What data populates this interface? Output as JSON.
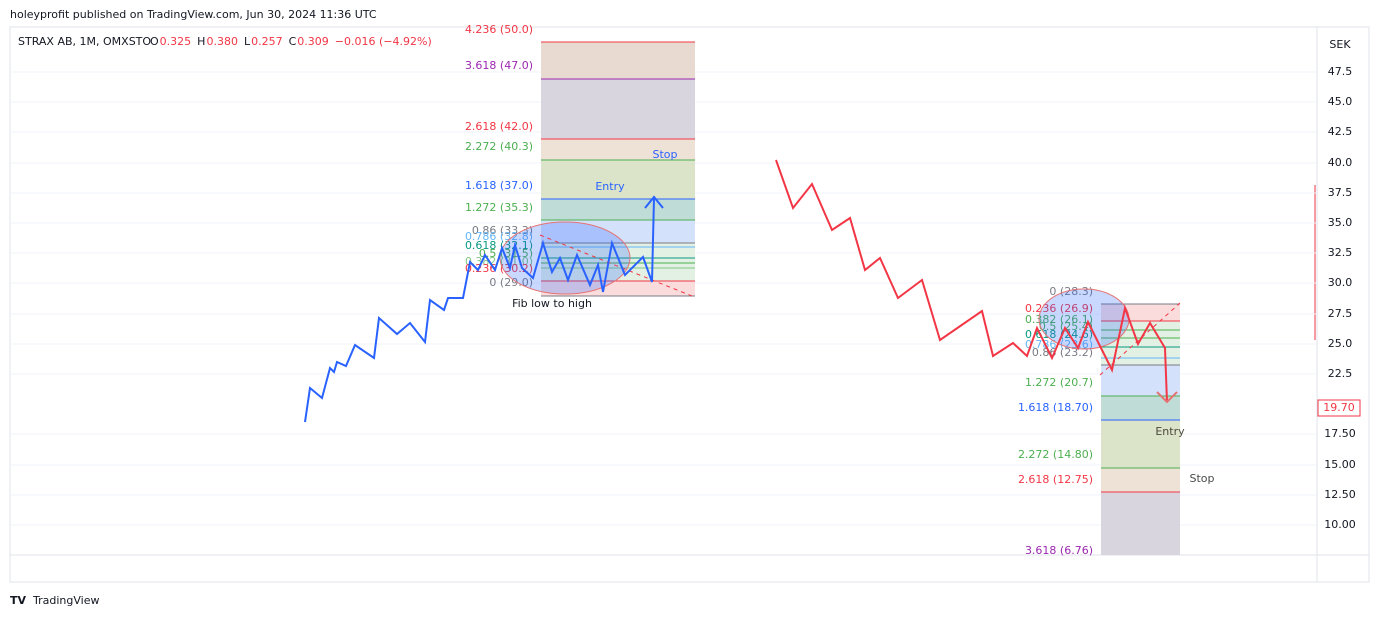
{
  "header": {
    "publisher": "holeyprofit published on TradingView.com, Jun 30, 2024 11:36 UTC"
  },
  "legend": {
    "symbol": "STRAX AB, 1M, OMXSTO",
    "ohlc": [
      {
        "key": "O",
        "value": "0.325"
      },
      {
        "key": "H",
        "value": "0.380"
      },
      {
        "key": "L",
        "value": "0.257"
      },
      {
        "key": "C",
        "value": "0.309"
      }
    ],
    "change": "−0.016 (−4.92%)"
  },
  "price_axis": {
    "currency": "SEK",
    "ticks": [
      "47.5",
      "45.0",
      "42.5",
      "40.0",
      "37.5",
      "35.0",
      "32.5",
      "30.0",
      "27.5",
      "25.0",
      "22.5",
      "17.50",
      "15.00",
      "12.50",
      "10.00"
    ],
    "last_price": "19.70"
  },
  "left_fib": {
    "levels": [
      "4.236 (50.0)",
      "3.618 (47.0)",
      "2.618 (42.0)",
      "2.272 (40.3)",
      "1.618 (37.0)",
      "1.272 (35.3)",
      "0.86 (33.3)",
      "0.786 (32.8)",
      "0.618 (32.1)",
      "0.5 (31.5)",
      "0.382 (31.0)",
      "0.236 (30.2)",
      "0 (29.0)"
    ],
    "annotations": [
      "Stop",
      "Entry",
      "Fib low to high"
    ]
  },
  "right_fib": {
    "levels": [
      "0 (28.3)",
      "0.236 (26.9)",
      "0.382 (26.1)",
      "0.5 (25.4)",
      "0.618 (24.6)",
      "0.786 (23.6)",
      "0.86 (23.2)",
      "1.272 (20.7)",
      "1.618 (18.70)",
      "2.272 (14.80)",
      "2.618 (12.75)",
      "3.618 (6.76)"
    ],
    "annotations": [
      "Entry",
      "Stop"
    ]
  },
  "footer": {
    "brand": "TradingView"
  }
}
